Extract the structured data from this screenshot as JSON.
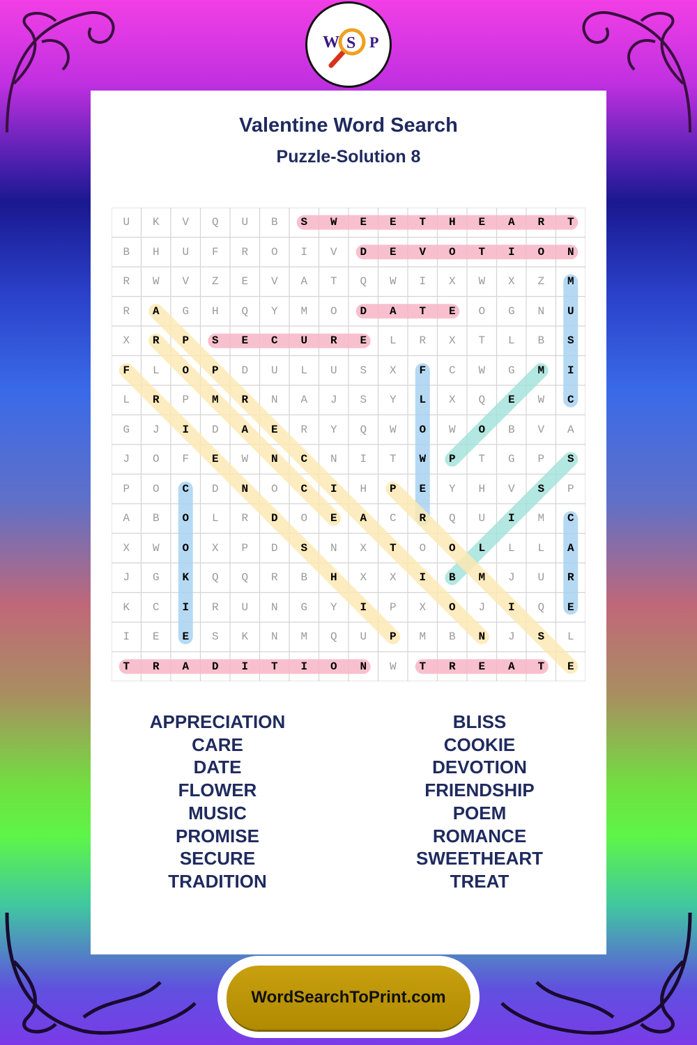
{
  "logo": {
    "letters": [
      "W",
      "S",
      "P"
    ]
  },
  "title": "Valentine Word Search",
  "subtitle": "Puzzle-Solution 8",
  "grid": [
    "UKVQUBSWEETHEART",
    "BHUFROIVDEVOTION",
    "RWVZEVATQWIXWXZM",
    "RAGHQYMODATEOGNU",
    "XRPSECURELRXTLBS",
    "FLOPDULUSXFCWGMI",
    "LRPMRNAJSYLXQEWC",
    "GJIDAERYQWOWOBVA",
    "JOFEWNCNITWPTGPS",
    "POCDNOCIHPEYHVSP",
    "ABOLRDOEACRQUIMC",
    "XWOXPDSNXTOOLLLA",
    "JGKQQRBHXXIBMJUR",
    "KCIRUNGYIPXOJIQE",
    "IEESKNMQUPMBNJSL",
    "TRADITIONWTREATE"
  ],
  "colors": {
    "pink": "#f7b6c6",
    "blue": "#a9d3f1",
    "yellow": "#fde9b4",
    "teal": "#a6e3dc"
  },
  "solutions": [
    {
      "word": "SWEETHEART",
      "start": [
        1,
        7
      ],
      "end": [
        1,
        16
      ],
      "color": "pink"
    },
    {
      "word": "DEVOTION",
      "start": [
        2,
        9
      ],
      "end": [
        2,
        16
      ],
      "color": "pink"
    },
    {
      "word": "DATE",
      "start": [
        4,
        9
      ],
      "end": [
        4,
        12
      ],
      "color": "pink"
    },
    {
      "word": "SECURE",
      "start": [
        5,
        4
      ],
      "end": [
        5,
        9
      ],
      "color": "pink"
    },
    {
      "word": "TRADITION",
      "start": [
        16,
        1
      ],
      "end": [
        16,
        9
      ],
      "color": "pink"
    },
    {
      "word": "TREAT",
      "start": [
        16,
        11
      ],
      "end": [
        16,
        15
      ],
      "color": "pink"
    },
    {
      "word": "MUSIC",
      "start": [
        3,
        16
      ],
      "end": [
        7,
        16
      ],
      "color": "blue"
    },
    {
      "word": "FLOWER",
      "start": [
        6,
        11
      ],
      "end": [
        11,
        11
      ],
      "color": "blue"
    },
    {
      "word": "COOKIE",
      "start": [
        10,
        3
      ],
      "end": [
        15,
        3
      ],
      "color": "blue"
    },
    {
      "word": "CARE",
      "start": [
        11,
        16
      ],
      "end": [
        14,
        16
      ],
      "color": "blue"
    },
    {
      "word": "POEM",
      "start": [
        9,
        12
      ],
      "end": [
        6,
        15
      ],
      "color": "teal"
    },
    {
      "word": "BLISS",
      "start": [
        13,
        12
      ],
      "end": [
        9,
        16
      ],
      "color": "teal"
    },
    {
      "word": "APPRECIATION",
      "start": [
        4,
        2
      ],
      "end": [
        15,
        13
      ],
      "color": "yellow"
    },
    {
      "word": "FRIENDSHIP",
      "start": [
        6,
        1
      ],
      "end": [
        15,
        10
      ],
      "color": "yellow"
    },
    {
      "word": "PROMISE",
      "start": [
        10,
        10
      ],
      "end": [
        16,
        16
      ],
      "color": "yellow"
    },
    {
      "word": "ROMANCE",
      "start": [
        5,
        2
      ],
      "end": [
        11,
        8
      ],
      "color": "yellow"
    }
  ],
  "word_list": {
    "left": [
      "APPRECIATION",
      "CARE",
      "DATE",
      "FLOWER",
      "MUSIC",
      "PROMISE",
      "SECURE",
      "TRADITION"
    ],
    "right": [
      "BLISS",
      "COOKIE",
      "DEVOTION",
      "FRIENDSHIP",
      "POEM",
      "ROMANCE",
      "SWEETHEART",
      "TREAT"
    ]
  },
  "site": "WordSearchToPrint.com"
}
